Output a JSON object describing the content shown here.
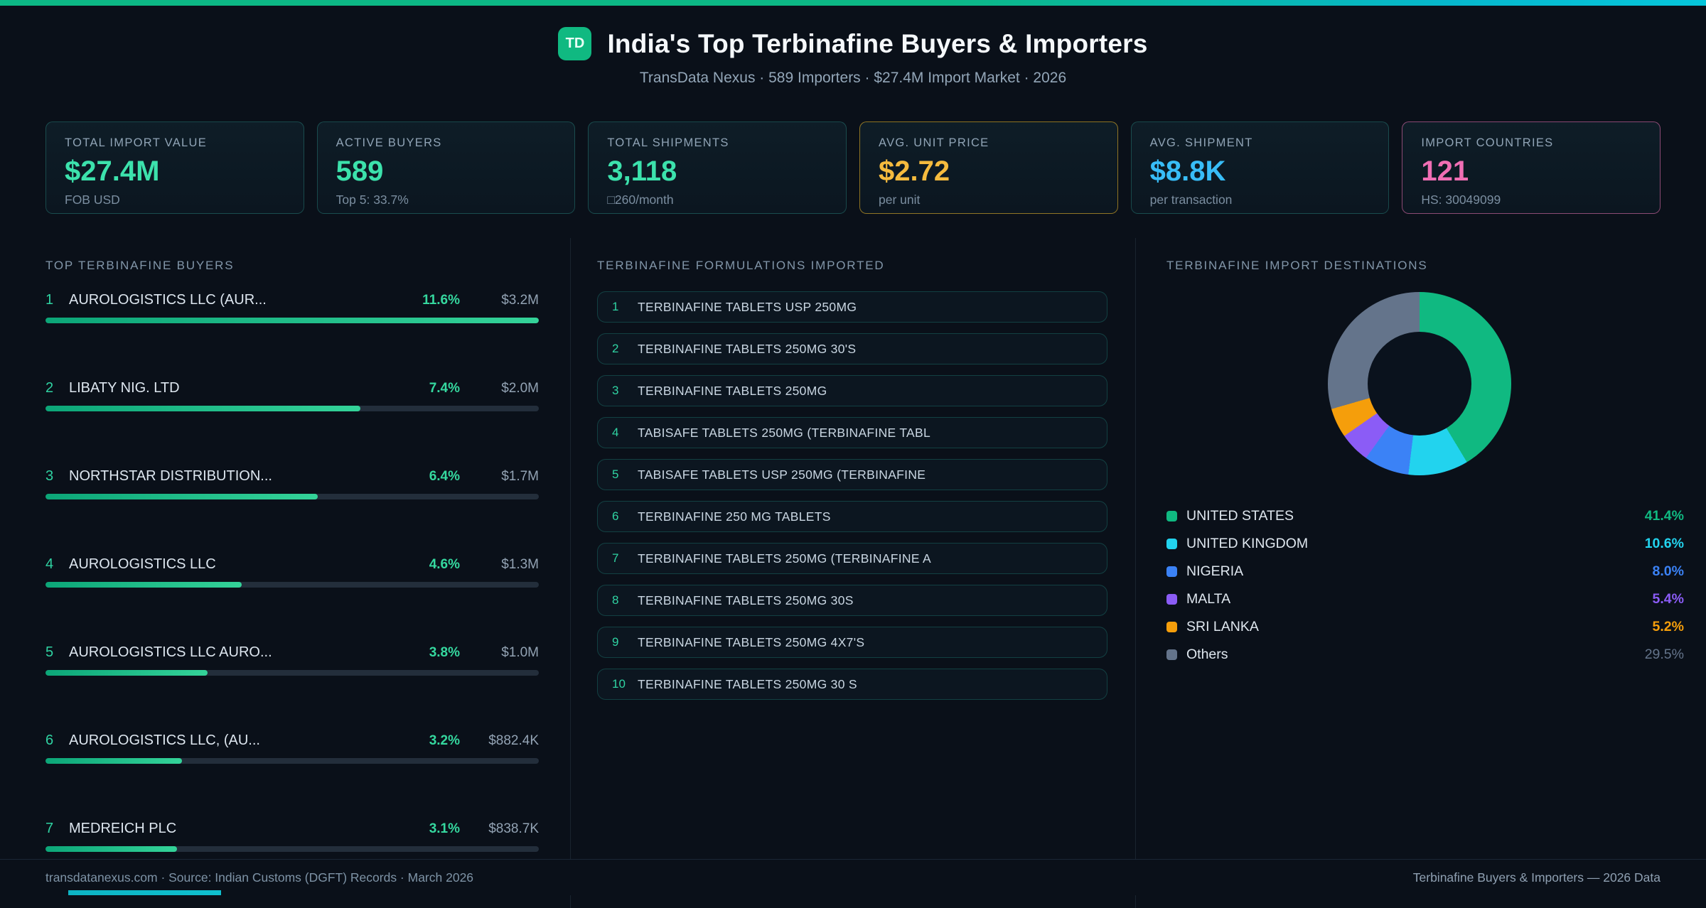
{
  "theme": {
    "page_bg": "#0a1019",
    "accent_green": "#34d399",
    "accent_cyan": "#22d3ee",
    "accent_amber": "#fbbf24",
    "accent_blue": "#38bdf8",
    "accent_pink": "#f472b6"
  },
  "header": {
    "logo_text": "TD",
    "title": "India's Top Terbinafine Buyers & Importers",
    "subtitle": "TransData Nexus · 589 Importers · $27.4M Import Market · 2026"
  },
  "stats": [
    {
      "label": "TOTAL IMPORT VALUE",
      "value": "$27.4M",
      "sub": "FOB USD",
      "color": "#3ce2ac"
    },
    {
      "label": "ACTIVE BUYERS",
      "value": "589",
      "sub": "Top 5: 33.7%",
      "color": "#3ce2ac"
    },
    {
      "label": "TOTAL SHIPMENTS",
      "value": "3,118",
      "sub": "□260/month",
      "color": "#3ce2ac"
    },
    {
      "label": "AVG. UNIT PRICE",
      "value": "$2.72",
      "sub": "per unit",
      "color": "#f5bb3e"
    },
    {
      "label": "AVG. SHIPMENT",
      "value": "$8.8K",
      "sub": "per transaction",
      "color": "#38bdf8"
    },
    {
      "label": "IMPORT COUNTRIES",
      "value": "121",
      "sub": "HS: 30049099",
      "color": "#f06eb4"
    }
  ],
  "buyers": {
    "section_title": "TOP TERBINAFINE BUYERS",
    "rows": [
      {
        "rank": "1",
        "name": "AUROLOGISTICS LLC (AUR...",
        "pct": "11.6%",
        "value": "$3.2M",
        "bar_pct": 100
      },
      {
        "rank": "2",
        "name": "LIBATY NIG. LTD",
        "pct": "7.4%",
        "value": "$2.0M",
        "bar_pct": 63.8
      },
      {
        "rank": "3",
        "name": "NORTHSTAR DISTRIBUTION...",
        "pct": "6.4%",
        "value": "$1.7M",
        "bar_pct": 55.2
      },
      {
        "rank": "4",
        "name": "AUROLOGISTICS LLC",
        "pct": "4.6%",
        "value": "$1.3M",
        "bar_pct": 39.7
      },
      {
        "rank": "5",
        "name": "AUROLOGISTICS LLC AURO...",
        "pct": "3.8%",
        "value": "$1.0M",
        "bar_pct": 32.8
      },
      {
        "rank": "6",
        "name": "AUROLOGISTICS LLC, (AU...",
        "pct": "3.2%",
        "value": "$882.4K",
        "bar_pct": 27.6
      },
      {
        "rank": "7",
        "name": "MEDREICH PLC",
        "pct": "3.1%",
        "value": "$838.7K",
        "bar_pct": 26.7
      }
    ]
  },
  "formulations": {
    "section_title": "TERBINAFINE FORMULATIONS IMPORTED",
    "items": [
      {
        "num": "1",
        "name": "TERBINAFINE TABLETS USP 250MG"
      },
      {
        "num": "2",
        "name": "TERBINAFINE TABLETS 250MG 30'S"
      },
      {
        "num": "3",
        "name": "TERBINAFINE TABLETS 250MG"
      },
      {
        "num": "4",
        "name": "TABISAFE TABLETS 250MG (TERBINAFINE TABL"
      },
      {
        "num": "5",
        "name": "TABISAFE TABLETS USP 250MG (TERBINAFINE"
      },
      {
        "num": "6",
        "name": "TERBINAFINE 250 MG TABLETS"
      },
      {
        "num": "7",
        "name": "TERBINAFINE TABLETS 250MG (TERBINAFINE A"
      },
      {
        "num": "8",
        "name": "TERBINAFINE TABLETS 250MG 30S"
      },
      {
        "num": "9",
        "name": "TERBINAFINE TABLETS 250MG 4X7'S"
      },
      {
        "num": "10",
        "name": "TERBINAFINE TABLETS 250MG 30 S"
      }
    ]
  },
  "destinations": {
    "section_title": "TERBINAFINE IMPORT DESTINATIONS",
    "hole_color": "#0a121d",
    "items": [
      {
        "label": "UNITED STATES",
        "pct": "41.4%",
        "value": 41.4,
        "color": "#10b981"
      },
      {
        "label": "UNITED KINGDOM",
        "pct": "10.6%",
        "value": 10.6,
        "color": "#22d3ee"
      },
      {
        "label": "NIGERIA",
        "pct": "8.0%",
        "value": 8.0,
        "color": "#3b82f6"
      },
      {
        "label": "MALTA",
        "pct": "5.4%",
        "value": 5.4,
        "color": "#8b5cf6"
      },
      {
        "label": "SRI LANKA",
        "pct": "5.2%",
        "value": 5.2,
        "color": "#f59e0b"
      },
      {
        "label": "Others",
        "pct": "29.5%",
        "value": 29.5,
        "color": "#64748b"
      }
    ]
  },
  "chart_data": [
    {
      "type": "bar",
      "orientation": "horizontal",
      "title": "TOP TERBINAFINE BUYERS",
      "categories": [
        "AUROLOGISTICS LLC (AUR...",
        "LIBATY NIG. LTD",
        "NORTHSTAR DISTRIBUTION...",
        "AUROLOGISTICS LLC",
        "AUROLOGISTICS LLC AURO...",
        "AUROLOGISTICS LLC, (AU...",
        "MEDREICH PLC"
      ],
      "series": [
        {
          "name": "market_share_pct",
          "values": [
            11.6,
            7.4,
            6.4,
            4.6,
            3.8,
            3.2,
            3.1
          ]
        },
        {
          "name": "import_value_labels",
          "values": [
            "$3.2M",
            "$2.0M",
            "$1.7M",
            "$1.3M",
            "$1.0M",
            "$882.4K",
            "$838.7K"
          ]
        }
      ],
      "xlabel": "",
      "ylabel": "",
      "grid": false
    },
    {
      "type": "pie",
      "donut": true,
      "title": "TERBINAFINE IMPORT DESTINATIONS",
      "categories": [
        "UNITED STATES",
        "UNITED KINGDOM",
        "NIGERIA",
        "MALTA",
        "SRI LANKA",
        "Others"
      ],
      "values": [
        41.4,
        10.6,
        8.0,
        5.4,
        5.2,
        29.5
      ],
      "colors": [
        "#10b981",
        "#22d3ee",
        "#3b82f6",
        "#8b5cf6",
        "#f59e0b",
        "#64748b"
      ],
      "legend_position": "bottom"
    }
  ],
  "footer": {
    "left": "transdatanexus.com · Source: Indian Customs (DGFT) Records · March 2026",
    "right": "Terbinafine Buyers & Importers — 2026 Data"
  }
}
